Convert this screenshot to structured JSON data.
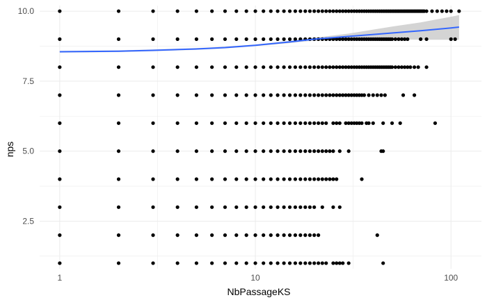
{
  "chart_data": {
    "type": "scatter",
    "xlabel": "NbPassageKS",
    "ylabel": "nps",
    "x_scale": "log10",
    "xlim": [
      1,
      113
    ],
    "ylim": [
      0.8,
      10.2
    ],
    "x_ticks": [
      {
        "value": 1,
        "label": "1"
      },
      {
        "value": 10,
        "label": "10"
      },
      {
        "value": 100,
        "label": "100"
      }
    ],
    "y_ticks": [
      {
        "value": 2.5,
        "label": "2.5"
      },
      {
        "value": 5.0,
        "label": "5.0"
      },
      {
        "value": 7.5,
        "label": "7.5"
      },
      {
        "value": 10.0,
        "label": "10.0"
      }
    ],
    "grid": true,
    "background": "minimal",
    "point_color": "#000000",
    "smooth_color": "#3366ff",
    "band_color": "#cccccc",
    "points_by_nps": [
      {
        "nps": 10,
        "x": [
          1,
          2,
          3,
          4,
          5,
          6,
          7,
          8,
          9,
          10,
          11,
          12,
          13,
          14,
          15,
          16,
          17,
          18,
          19,
          20,
          21,
          22,
          23,
          24,
          25,
          26,
          27,
          28,
          29,
          30,
          31,
          32,
          33,
          34,
          35,
          36,
          37,
          38,
          39,
          40,
          41,
          42,
          43,
          44,
          45,
          46,
          47,
          48,
          49,
          50,
          51,
          52,
          53,
          54,
          55,
          56,
          57,
          58,
          59,
          60,
          61,
          62,
          63,
          64,
          65,
          66,
          67,
          68,
          69,
          70,
          71,
          72,
          73,
          75,
          80,
          85,
          90,
          95,
          100,
          110
        ]
      },
      {
        "nps": 9,
        "x": [
          1,
          2,
          3,
          4,
          5,
          6,
          7,
          8,
          9,
          10,
          11,
          12,
          13,
          14,
          15,
          16,
          17,
          18,
          19,
          20,
          21,
          22,
          23,
          24,
          25,
          26,
          27,
          28,
          29,
          30,
          31,
          32,
          33,
          34,
          35,
          36,
          37,
          38,
          39,
          40,
          41,
          42,
          43,
          44,
          45,
          46,
          47,
          48,
          49,
          50,
          52,
          54,
          56,
          58,
          60,
          70,
          75,
          100,
          105
        ]
      },
      {
        "nps": 8,
        "x": [
          1,
          2,
          3,
          4,
          5,
          6,
          7,
          8,
          9,
          10,
          11,
          12,
          13,
          14,
          15,
          16,
          17,
          18,
          19,
          20,
          21,
          22,
          23,
          24,
          25,
          26,
          27,
          28,
          29,
          30,
          31,
          32,
          33,
          34,
          35,
          36,
          37,
          38,
          39,
          40,
          41,
          42,
          43,
          44,
          45,
          46,
          47,
          48,
          49,
          50,
          52,
          54,
          56,
          58,
          60,
          62,
          65,
          68,
          75
        ]
      },
      {
        "nps": 7,
        "x": [
          1,
          2,
          3,
          4,
          5,
          6,
          7,
          8,
          9,
          10,
          11,
          12,
          13,
          14,
          15,
          16,
          17,
          18,
          19,
          20,
          21,
          22,
          23,
          24,
          25,
          26,
          27,
          28,
          29,
          30,
          31,
          32,
          33,
          34,
          35,
          36,
          38,
          40,
          42,
          44,
          46,
          57,
          65
        ]
      },
      {
        "nps": 6,
        "x": [
          1,
          2,
          3,
          4,
          5,
          6,
          7,
          8,
          9,
          10,
          11,
          12,
          13,
          14,
          15,
          16,
          17,
          18,
          19,
          20,
          21,
          22,
          23,
          25,
          26,
          27,
          29,
          30,
          31,
          32,
          33,
          34,
          35,
          37,
          38,
          40,
          45,
          50,
          55,
          83
        ]
      },
      {
        "nps": 5,
        "x": [
          1,
          2,
          3,
          4,
          5,
          6,
          7,
          8,
          9,
          10,
          11,
          12,
          13,
          14,
          15,
          16,
          17,
          18,
          19,
          20,
          21,
          22,
          23,
          24,
          25,
          27,
          30,
          44,
          45
        ]
      },
      {
        "nps": 4,
        "x": [
          1,
          2,
          3,
          4,
          5,
          6,
          7,
          8,
          9,
          10,
          11,
          12,
          13,
          14,
          15,
          16,
          17,
          18,
          19,
          20,
          21,
          22,
          23,
          24,
          25,
          26,
          35
        ]
      },
      {
        "nps": 3,
        "x": [
          1,
          2,
          3,
          4,
          5,
          6,
          7,
          8,
          9,
          10,
          11,
          12,
          13,
          14,
          15,
          16,
          17,
          18,
          19,
          20,
          22,
          25,
          27
        ]
      },
      {
        "nps": 2,
        "x": [
          1,
          2,
          3,
          4,
          5,
          6,
          7,
          8,
          9,
          10,
          11,
          12,
          13,
          14,
          15,
          16,
          17,
          18,
          19,
          20,
          21,
          42
        ]
      },
      {
        "nps": 1,
        "x": [
          1,
          2,
          3,
          4,
          5,
          6,
          7,
          8,
          9,
          10,
          11,
          12,
          13,
          14,
          15,
          16,
          17,
          18,
          19,
          20,
          21,
          22,
          23,
          25,
          26,
          27,
          28,
          30,
          45
        ]
      }
    ],
    "smooth": {
      "x": [
        1,
        2,
        3,
        5,
        7,
        10,
        15,
        20,
        30,
        50,
        70,
        100,
        110
      ],
      "y": [
        8.55,
        8.57,
        8.6,
        8.65,
        8.7,
        8.78,
        8.9,
        9.0,
        9.1,
        9.22,
        9.3,
        9.4,
        9.43
      ],
      "lower": [
        8.52,
        8.54,
        8.57,
        8.62,
        8.67,
        8.75,
        8.86,
        8.95,
        9.0,
        9.0,
        8.98,
        8.98,
        8.98
      ],
      "upper": [
        8.58,
        8.6,
        8.63,
        8.68,
        8.73,
        8.81,
        8.94,
        9.05,
        9.2,
        9.45,
        9.6,
        9.8,
        9.86
      ]
    }
  }
}
